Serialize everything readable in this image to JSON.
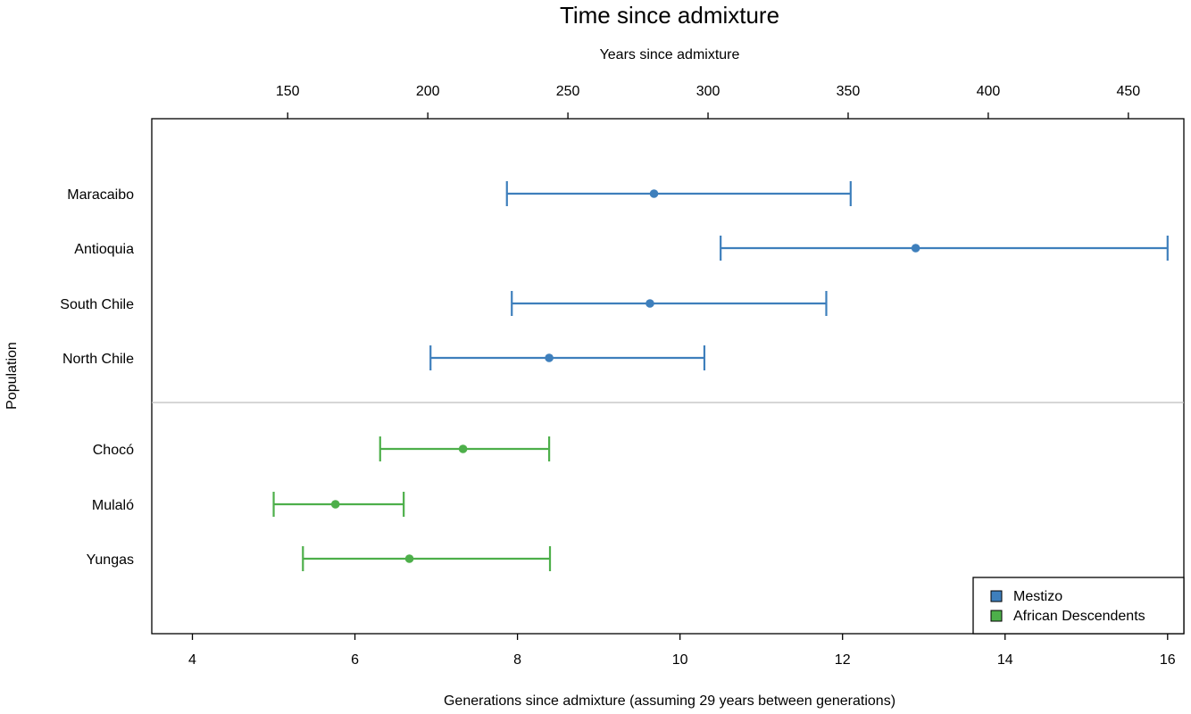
{
  "chart_data": {
    "type": "forest",
    "title": "Time since admixture",
    "xlabel": "Generations since admixture (assuming 29 years between generations)",
    "x2label": "Years since admixture",
    "ylabel": "Population",
    "xlim": [
      3.5,
      16.2
    ],
    "xticks": [
      4,
      6,
      8,
      10,
      12,
      14,
      16
    ],
    "x2ticks": [
      150,
      200,
      250,
      300,
      350,
      400,
      450
    ],
    "years_per_generation": 29,
    "divider": true,
    "legend_position": "bottom-right",
    "groups": [
      {
        "name": "Mestizo",
        "color": "#3e7fbc"
      },
      {
        "name": "African Descendents",
        "color": "#4daf4a"
      }
    ],
    "populations": [
      {
        "name": "Maracaibo",
        "group": "Mestizo",
        "estimate": 9.68,
        "lower": 7.87,
        "upper": 12.1
      },
      {
        "name": "Antioquia",
        "group": "Mestizo",
        "estimate": 12.9,
        "lower": 10.5,
        "upper": 16.0
      },
      {
        "name": "South Chile",
        "group": "Mestizo",
        "estimate": 9.63,
        "lower": 7.93,
        "upper": 11.8
      },
      {
        "name": "North Chile",
        "group": "Mestizo",
        "estimate": 8.39,
        "lower": 6.93,
        "upper": 10.3
      },
      {
        "name": "Chocó",
        "group": "African Descendents",
        "estimate": 7.33,
        "lower": 6.31,
        "upper": 8.39
      },
      {
        "name": "Mulaló",
        "group": "African Descendents",
        "estimate": 5.76,
        "lower": 5.0,
        "upper": 6.6
      },
      {
        "name": "Yungas",
        "group": "African Descendents",
        "estimate": 6.67,
        "lower": 5.36,
        "upper": 8.4
      }
    ]
  }
}
